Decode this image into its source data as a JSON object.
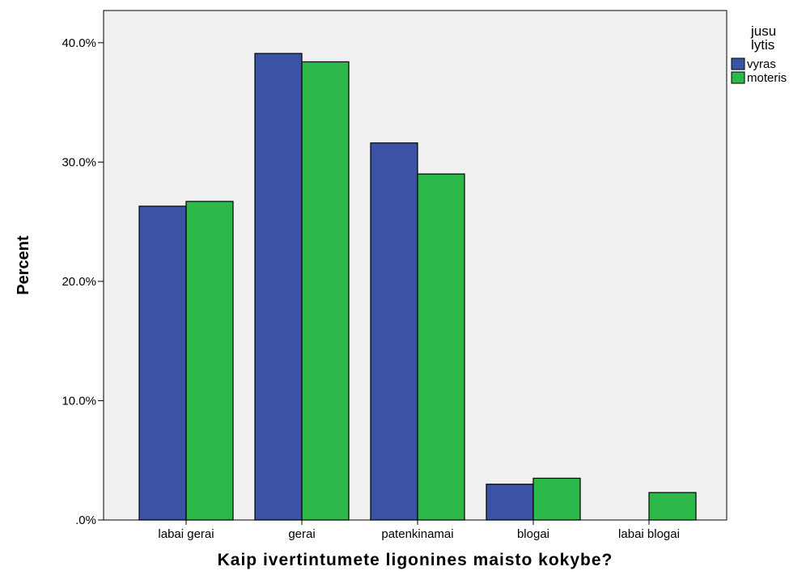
{
  "chart_data": {
    "type": "bar",
    "categories": [
      "labai gerai",
      "gerai",
      "patenkinamai",
      "blogai",
      "labai blogai"
    ],
    "series": [
      {
        "name": "vyras",
        "color": "#3a53a4",
        "values": [
          26.3,
          39.1,
          31.6,
          3.0,
          0.0
        ]
      },
      {
        "name": "moteris",
        "color": "#2db84a",
        "values": [
          26.7,
          38.4,
          29.0,
          3.5,
          2.3
        ]
      }
    ],
    "title": "",
    "xlabel": "Kaip ivertintumete ligonines maisto kokybe?",
    "ylabel": "Percent",
    "ylim": [
      0,
      42.7
    ],
    "yticks": [
      {
        "value": 0,
        "label": ".0%"
      },
      {
        "value": 10,
        "label": "10.0%"
      },
      {
        "value": 20,
        "label": "20.0%"
      },
      {
        "value": 30,
        "label": "30.0%"
      },
      {
        "value": 40,
        "label": "40.0%"
      }
    ],
    "grid": false,
    "plot_background": "#f0f0f0",
    "legend": {
      "title_lines": [
        "jusu",
        "lytis"
      ],
      "placement": "top-right, outside plot"
    }
  }
}
